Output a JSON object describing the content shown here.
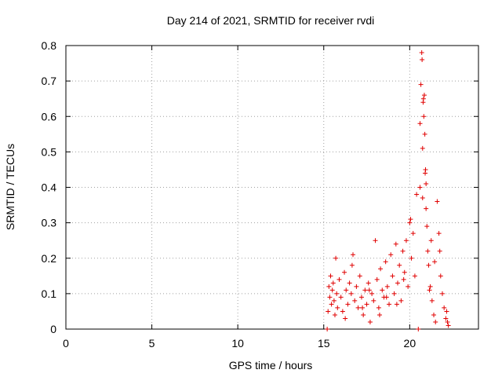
{
  "chart_data": {
    "type": "scatter",
    "title": "Day 214 of 2021, SRMTID for receiver rvdi",
    "xlabel": "GPS time / hours",
    "ylabel": "SRMTID / TECUs",
    "xlim": [
      0,
      24
    ],
    "ylim": [
      0,
      0.8
    ],
    "xticks": [
      0,
      5,
      10,
      15,
      20
    ],
    "yticks": [
      0,
      0.1,
      0.2,
      0.3,
      0.4,
      0.5,
      0.6,
      0.7,
      0.8
    ],
    "grid": true,
    "marker": "plus",
    "color": "#e00000",
    "series": [
      {
        "name": "SRMTID",
        "x": [
          15.2,
          15.3,
          15.35,
          15.4,
          15.45,
          15.5,
          15.55,
          15.6,
          15.7,
          15.75,
          15.8,
          15.9,
          16.0,
          16.1,
          16.2,
          16.3,
          16.4,
          16.5,
          16.6,
          16.7,
          16.8,
          16.9,
          17.0,
          17.1,
          17.2,
          17.3,
          17.4,
          17.5,
          17.6,
          17.7,
          17.8,
          17.9,
          18.0,
          18.1,
          18.2,
          18.3,
          18.4,
          18.5,
          18.6,
          18.7,
          18.8,
          18.9,
          19.0,
          19.1,
          19.2,
          19.3,
          19.4,
          19.5,
          19.6,
          19.7,
          19.8,
          19.9,
          20.0,
          20.05,
          20.1,
          20.2,
          20.3,
          20.4,
          20.5,
          20.6,
          20.65,
          20.7,
          20.72,
          20.75,
          20.78,
          20.8,
          20.82,
          20.85,
          20.88,
          20.9,
          20.92,
          20.95,
          21.0,
          21.05,
          21.1,
          21.2,
          21.3,
          21.4,
          21.5,
          21.6,
          21.7,
          21.8,
          21.9,
          22.0,
          22.1,
          22.2,
          22.25,
          20.6,
          20.75,
          15.25,
          16.25,
          17.25,
          18.25,
          19.25,
          21.25,
          21.75,
          22.15,
          15.65,
          16.65,
          17.65,
          18.65,
          19.65,
          21.45,
          20.95,
          21.15
        ],
        "y": [
          0.0,
          0.12,
          0.09,
          0.15,
          0.07,
          0.11,
          0.13,
          0.08,
          0.2,
          0.1,
          0.06,
          0.14,
          0.09,
          0.05,
          0.16,
          0.11,
          0.07,
          0.13,
          0.1,
          0.21,
          0.08,
          0.12,
          0.06,
          0.15,
          0.09,
          0.04,
          0.11,
          0.07,
          0.13,
          0.02,
          0.1,
          0.08,
          0.25,
          0.14,
          0.06,
          0.17,
          0.11,
          0.09,
          0.19,
          0.12,
          0.07,
          0.21,
          0.15,
          0.1,
          0.24,
          0.13,
          0.18,
          0.08,
          0.22,
          0.16,
          0.25,
          0.12,
          0.3,
          0.31,
          0.2,
          0.27,
          0.15,
          0.38,
          0.0,
          0.58,
          0.69,
          0.78,
          0.76,
          0.51,
          0.64,
          0.65,
          0.6,
          0.66,
          0.55,
          0.44,
          0.45,
          0.41,
          0.29,
          0.22,
          0.18,
          0.12,
          0.08,
          0.04,
          0.02,
          0.36,
          0.27,
          0.15,
          0.1,
          0.06,
          0.03,
          0.02,
          0.01,
          0.4,
          0.37,
          0.05,
          0.03,
          0.06,
          0.04,
          0.07,
          0.25,
          0.22,
          0.05,
          0.04,
          0.18,
          0.11,
          0.09,
          0.14,
          0.19,
          0.34,
          0.11
        ]
      }
    ]
  }
}
